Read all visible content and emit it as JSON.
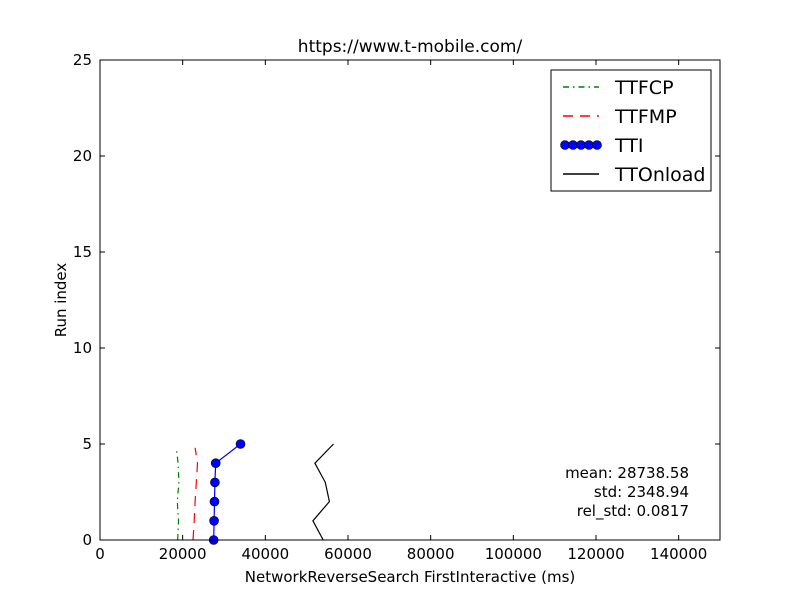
{
  "chart_data": {
    "type": "line",
    "title": "https://www.t-mobile.com/",
    "xlabel": "NetworkReverseSearch FirstInteractive (ms)",
    "ylabel": "Run index",
    "xlim": [
      0,
      150000
    ],
    "ylim": [
      0,
      25
    ],
    "xticks": [
      0,
      20000,
      40000,
      60000,
      80000,
      100000,
      120000,
      140000
    ],
    "yticks": [
      0,
      5,
      10,
      15,
      20,
      25
    ],
    "grid": false,
    "legend_position": "top-right",
    "series": [
      {
        "name": "TTFCP",
        "color": "#008000",
        "style": "dash-dot",
        "marker": "none",
        "points": [
          [
            18800,
            0
          ],
          [
            19000,
            1
          ],
          [
            18700,
            2
          ],
          [
            19100,
            3
          ],
          [
            18900,
            4
          ],
          [
            18500,
            4.7
          ]
        ]
      },
      {
        "name": "TTFMP",
        "color": "#ff0000",
        "style": "dashed",
        "marker": "none",
        "points": [
          [
            22500,
            0
          ],
          [
            22800,
            1
          ],
          [
            23000,
            2
          ],
          [
            23300,
            3
          ],
          [
            23600,
            4
          ],
          [
            23000,
            4.8
          ]
        ]
      },
      {
        "name": "TTI",
        "color": "#0000ff",
        "style": "solid",
        "marker": "circle",
        "points": [
          [
            27500,
            0
          ],
          [
            27600,
            1
          ],
          [
            27700,
            2
          ],
          [
            27800,
            3
          ],
          [
            28000,
            4
          ],
          [
            34000,
            5
          ]
        ]
      },
      {
        "name": "TTOnload",
        "color": "#000000",
        "style": "solid",
        "marker": "none",
        "points": [
          [
            54000,
            0
          ],
          [
            51500,
            1
          ],
          [
            55500,
            2
          ],
          [
            54500,
            3
          ],
          [
            52000,
            4
          ],
          [
            56500,
            5
          ]
        ]
      }
    ],
    "annotations": [
      "mean: 28738.58",
      "std: 2348.94",
      "rel_std: 0.0817"
    ]
  }
}
